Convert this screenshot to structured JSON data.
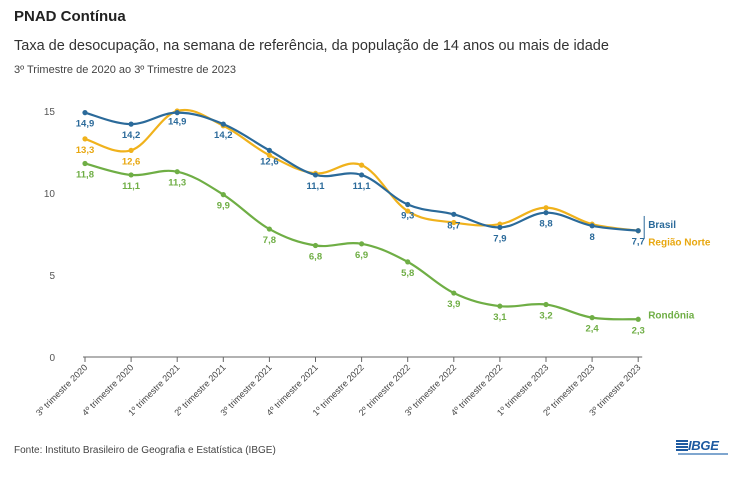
{
  "header": {
    "title": "PNAD Contínua",
    "subtitle": "Taxa de desocupação, na semana de referência, da população de 14 anos ou mais de idade",
    "period": "3º Trimestre de 2020 ao 3º Trimestre de 2023"
  },
  "footer": {
    "source": "Fonte: Instituto Brasileiro de Geografia e Estatística (IBGE)",
    "logo_text": "IBGE"
  },
  "chart_data": {
    "type": "line",
    "categories": [
      "3º trimestre 2020",
      "4º trimestre 2020",
      "1º trimestre 2021",
      "2º trimestre 2021",
      "3º trimestre 2021",
      "4º trimestre 2021",
      "1º trimestre 2022",
      "2º trimestre 2022",
      "3º trimestre 2022",
      "4º trimestre 2022",
      "1º trimestre 2023",
      "2º trimestre 2023",
      "3º trimestre 2023"
    ],
    "ylim": [
      0,
      15
    ],
    "yticks": [
      0,
      5,
      10,
      15
    ],
    "grid": false,
    "series": [
      {
        "name": "Brasil",
        "color": "#2b6a9a",
        "values": [
          14.9,
          14.2,
          14.9,
          14.2,
          12.6,
          11.1,
          11.1,
          9.3,
          8.7,
          7.9,
          8.8,
          8,
          7.7
        ],
        "labels": [
          "14,9",
          "14,2",
          "14,9",
          "14,2",
          "12,6",
          "11,1",
          "11,1",
          "9,3",
          "8,7",
          "7,9",
          "8,8",
          "8",
          "7,7"
        ]
      },
      {
        "name": "Região Norte",
        "color": "#f0b21c",
        "values": [
          13.3,
          12.6,
          15.0,
          14.1,
          12.3,
          11.2,
          11.7,
          8.9,
          8.2,
          8.1,
          9.1,
          8.1,
          7.7
        ],
        "labels": [
          "13,3",
          "12,6",
          "",
          "",
          "",
          "",
          "",
          "",
          "",
          "",
          "",
          "",
          ""
        ]
      },
      {
        "name": "Rondônia",
        "color": "#6fae45",
        "values": [
          11.8,
          11.1,
          11.3,
          9.9,
          7.8,
          6.8,
          6.9,
          5.8,
          3.9,
          3.1,
          3.2,
          2.4,
          2.3
        ],
        "labels": [
          "11,8",
          "11,1",
          "11,3",
          "9,9",
          "7,8",
          "6,8",
          "6,9",
          "5,8",
          "3,9",
          "3,1",
          "3,2",
          "2,4",
          "2,3"
        ]
      }
    ]
  }
}
